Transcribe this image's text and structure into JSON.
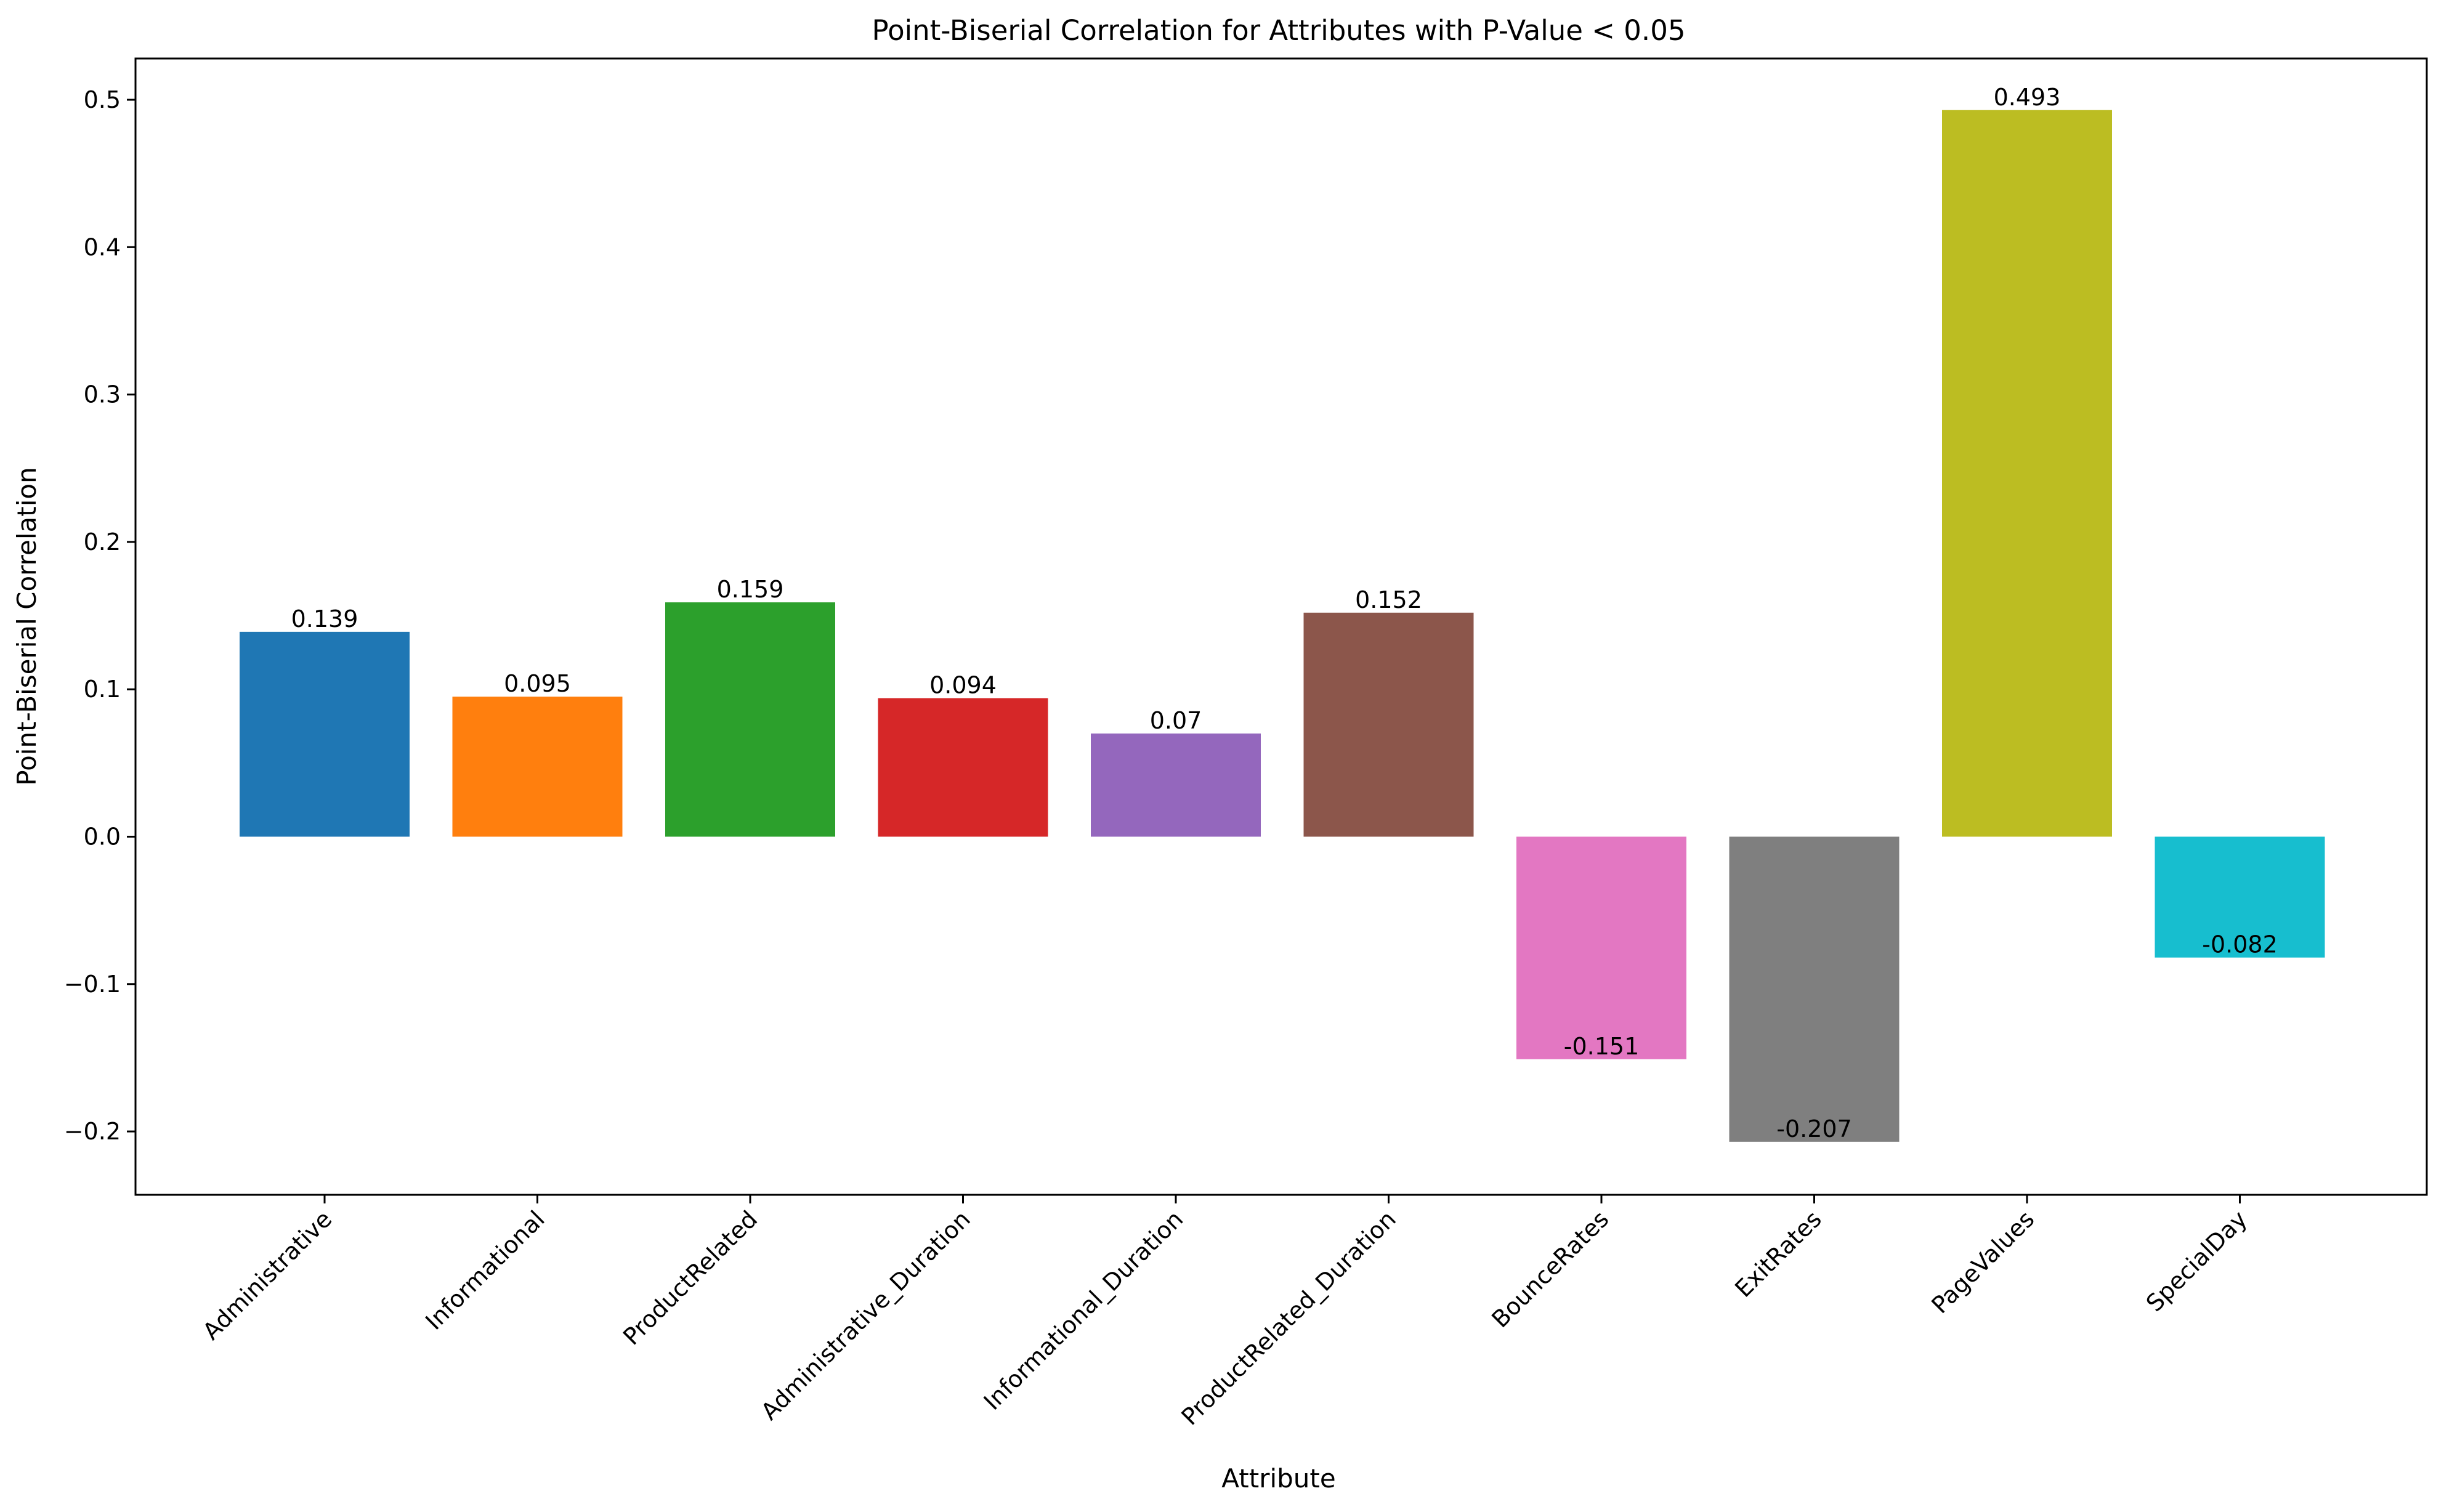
{
  "chart_data": {
    "type": "bar",
    "title": "Point-Biserial Correlation for Attributes with P-Value < 0.05",
    "xlabel": "Attribute",
    "ylabel": "Point-Biserial Correlation",
    "categories": [
      "Administrative",
      "Informational",
      "ProductRelated",
      "Administrative_Duration",
      "Informational_Duration",
      "ProductRelated_Duration",
      "BounceRates",
      "ExitRates",
      "PageValues",
      "SpecialDay"
    ],
    "values": [
      0.139,
      0.095,
      0.159,
      0.094,
      0.07,
      0.152,
      -0.151,
      -0.207,
      0.493,
      -0.082
    ],
    "value_labels": [
      "0.139",
      "0.095",
      "0.159",
      "0.094",
      "0.07",
      "0.152",
      "-0.151",
      "-0.207",
      "0.493",
      "-0.082"
    ],
    "colors": [
      "#1f77b4",
      "#ff7f0e",
      "#2ca02c",
      "#d62728",
      "#9467bd",
      "#8c564b",
      "#e377c2",
      "#7f7f7f",
      "#bcbd22",
      "#17becf"
    ],
    "ylim": [
      -0.243,
      0.528
    ],
    "yticks": [
      -0.2,
      -0.1,
      0.0,
      0.1,
      0.2,
      0.3,
      0.4,
      0.5
    ],
    "ytick_labels": [
      "−0.2",
      "−0.1",
      "0.0",
      "0.1",
      "0.2",
      "0.3",
      "0.4",
      "0.5"
    ],
    "grid": false,
    "legend": "none"
  }
}
